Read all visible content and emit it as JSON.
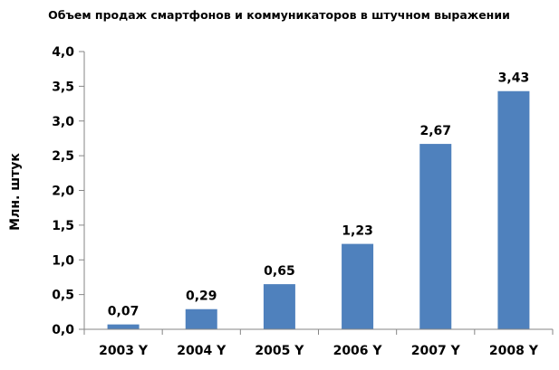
{
  "chart_data": {
    "type": "bar",
    "title": "Объем продаж смартфонов и коммуникаторов в штучном выражении",
    "xlabel": "",
    "ylabel": "Млн. штук",
    "categories": [
      "2003 Y",
      "2004 Y",
      "2005 Y",
      "2006 Y",
      "2007 Y",
      "2008 Y"
    ],
    "values": [
      0.07,
      0.29,
      0.65,
      1.23,
      2.67,
      3.43
    ],
    "data_labels": [
      "0,07",
      "0,29",
      "0,65",
      "1,23",
      "2,67",
      "3,43"
    ],
    "ylim": [
      0,
      4.0
    ],
    "yticks": [
      0,
      0.5,
      1.0,
      1.5,
      2.0,
      2.5,
      3.0,
      3.5,
      4.0
    ],
    "ytick_labels": [
      "0,0",
      "0,5",
      "1,0",
      "1,5",
      "2,0",
      "2,5",
      "3,0",
      "3,5",
      "4,0"
    ],
    "grid": false,
    "legend": "none",
    "bar_color": "#4F81BD",
    "axis_color": "#868686"
  }
}
